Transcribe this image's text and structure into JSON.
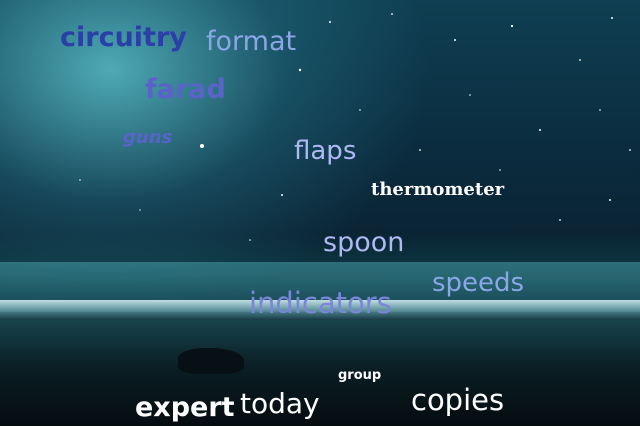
{
  "words": {
    "circuitry": "circuitry",
    "format": "format",
    "farad": "farad",
    "guns": "guns",
    "flaps": "flaps",
    "thermometer": "thermometer",
    "spoon": "spoon",
    "speeds": "speeds",
    "indicators": "indicators",
    "group": "group",
    "expert": "expert",
    "today": "today",
    "copies": "copies"
  },
  "colors": {
    "navy": "#2b3fa8",
    "periwinkle": "#8aa6e6",
    "lavender": "#aeb8f2",
    "white": "#ffffff",
    "slate_blue": "#5a63c8"
  }
}
